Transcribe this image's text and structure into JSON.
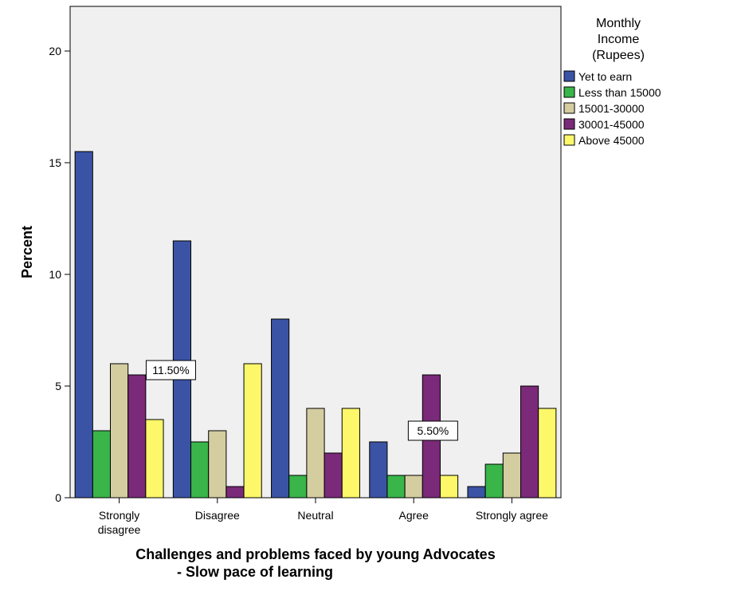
{
  "chart_data": {
    "type": "bar",
    "title": "",
    "xlabel": "Challenges and problems faced by young Advocates - Slow pace of learning",
    "xlabel_lines": [
      "Challenges and problems faced by young Advocates",
      "- Slow pace of learning"
    ],
    "ylabel": "Percent",
    "ylim": [
      0,
      22
    ],
    "yticks": [
      0,
      5,
      10,
      15,
      20
    ],
    "categories": [
      "Strongly disagree",
      "Disagree",
      "Neutral",
      "Agree",
      "Strongly agree"
    ],
    "category_label_lines": [
      [
        "Strongly",
        "disagree"
      ],
      [
        "Disagree"
      ],
      [
        "Neutral"
      ],
      [
        "Agree"
      ],
      [
        "Strongly agree"
      ]
    ],
    "series": [
      {
        "name": "Yet to earn",
        "color": "#3A53A4",
        "values": [
          15.5,
          11.5,
          8.0,
          2.5,
          0.5
        ]
      },
      {
        "name": "Less than 15000",
        "color": "#39B54A",
        "values": [
          3.0,
          2.5,
          1.0,
          1.0,
          1.5
        ]
      },
      {
        "name": "15001-30000",
        "color": "#D4CDA0",
        "values": [
          6.0,
          3.0,
          4.0,
          1.0,
          2.0
        ]
      },
      {
        "name": "30001-45000",
        "color": "#7A2A78",
        "values": [
          5.5,
          0.5,
          2.0,
          5.5,
          5.0
        ]
      },
      {
        "name": "Above 45000",
        "color": "#FDF76A",
        "values": [
          3.5,
          6.0,
          4.0,
          1.0,
          4.0
        ]
      }
    ],
    "legend": {
      "title_lines": [
        "Monthly",
        "Income",
        "(Rupees)"
      ],
      "placement": "right"
    },
    "annotations": [
      {
        "text": "11.50%",
        "category": "Disagree",
        "series": "Yet to earn"
      },
      {
        "text": "5.50%",
        "category": "Agree",
        "series": "30001-45000"
      }
    ],
    "grid": false,
    "plot_background": "#F0F0F0"
  }
}
